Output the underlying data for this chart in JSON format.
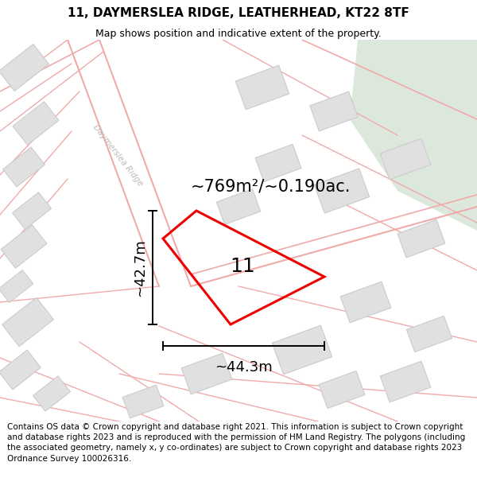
{
  "title": "11, DAYMERSLEA RIDGE, LEATHERHEAD, KT22 8TF",
  "subtitle": "Map shows position and indicative extent of the property.",
  "footer": "Contains OS data © Crown copyright and database right 2021. This information is subject to Crown copyright and database rights 2023 and is reproduced with the permission of HM Land Registry. The polygons (including the associated geometry, namely x, y co-ordinates) are subject to Crown copyright and database rights 2023 Ordnance Survey 100026316.",
  "area_label": "~769m²/~0.190ac.",
  "width_label": "~44.3m",
  "height_label": "~42.7m",
  "property_number": "11",
  "map_bg": "#f8f8f8",
  "road_line_color": "#f0aaaa",
  "green_area_color": "#dde8dd",
  "building_color": "#e0e0e0",
  "building_edge": "#cccccc",
  "plot_poly_color": "#ee0000",
  "plot_poly_lw": 2.2,
  "road_label_color": "#c0b8b8",
  "road_label": "Daymerslea Ridge",
  "title_fontsize": 11,
  "subtitle_fontsize": 9,
  "footer_fontsize": 7.5,
  "annotation_fontsize": 13,
  "number_fontsize": 18,
  "area_fontsize": 15
}
